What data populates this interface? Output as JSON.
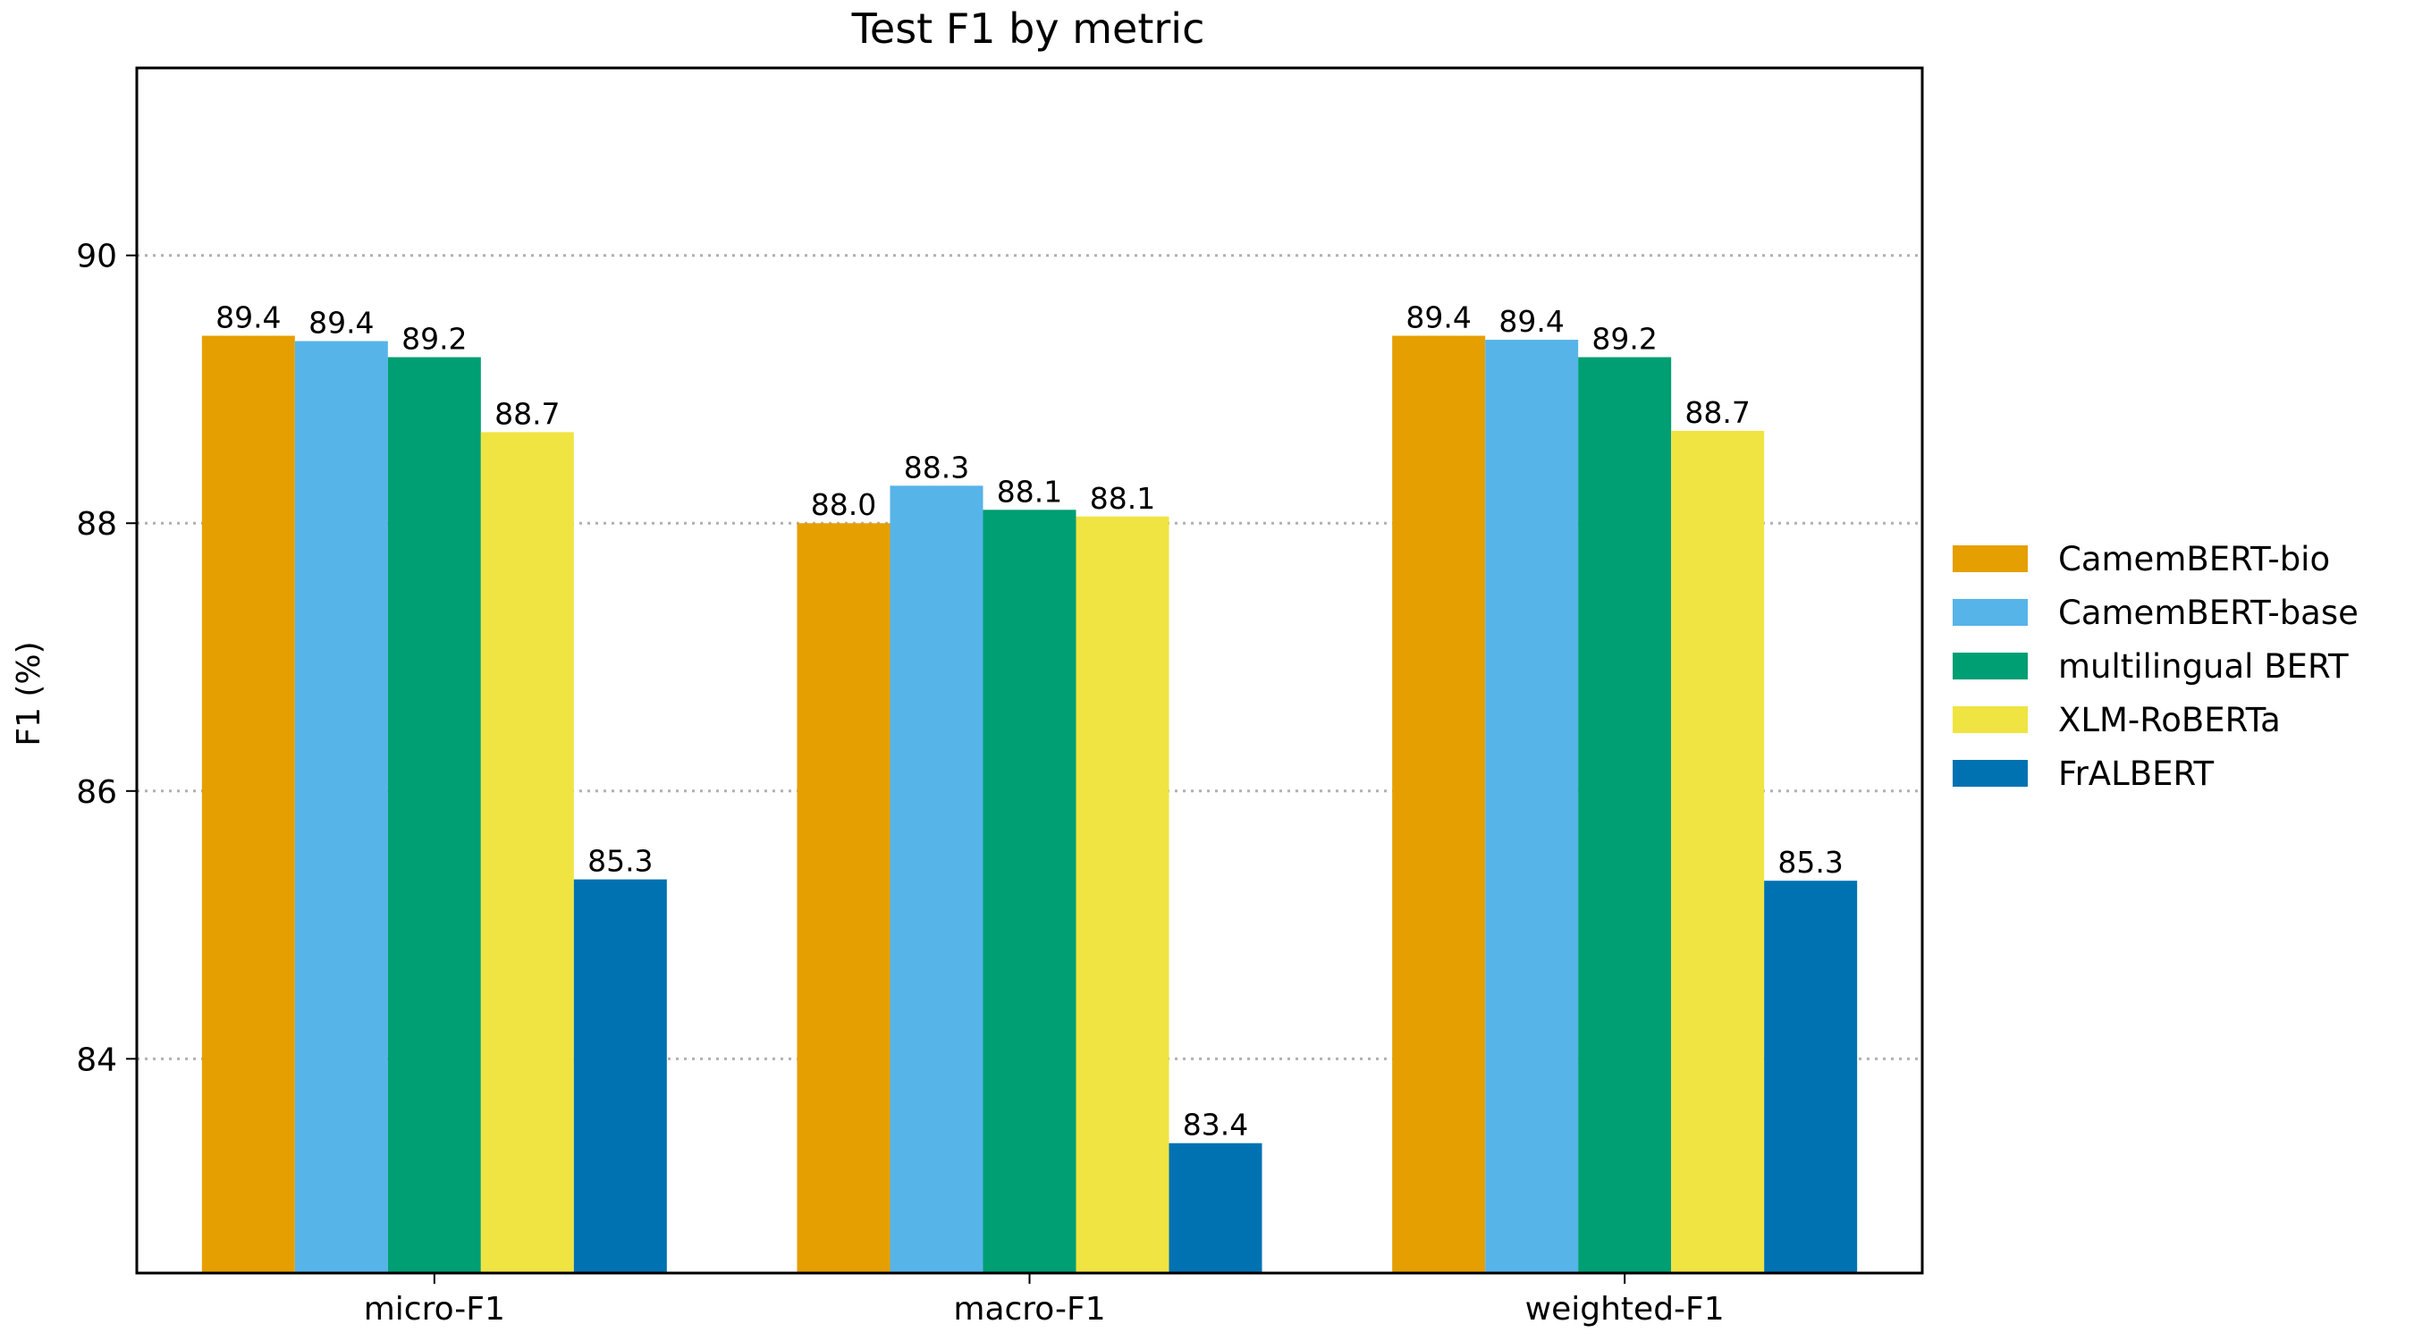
{
  "chart_data": {
    "type": "bar",
    "title": "Test F1 by metric",
    "xlabel": "",
    "ylabel": "F1 (%)",
    "categories": [
      "micro-F1",
      "macro-F1",
      "weighted-F1"
    ],
    "ylim": [
      82.4,
      91.4
    ],
    "yticks": [
      84,
      86,
      88,
      90
    ],
    "grid": "y-dotted",
    "legend": "right",
    "series": [
      {
        "name": "CamemBERT-bio",
        "color": "#E69F00",
        "values": [
          89.4,
          88.0,
          89.4
        ],
        "labels": [
          "89.4",
          "88.0",
          "89.4"
        ]
      },
      {
        "name": "CamemBERT-base",
        "color": "#56B4E9",
        "values": [
          89.36,
          88.28,
          89.37
        ],
        "labels": [
          "89.4",
          "88.3",
          "89.4"
        ]
      },
      {
        "name": "multilingual BERT",
        "color": "#009E73",
        "values": [
          89.24,
          88.1,
          89.24
        ],
        "labels": [
          "89.2",
          "88.1",
          "89.2"
        ]
      },
      {
        "name": "XLM-RoBERTa",
        "color": "#F0E442",
        "values": [
          88.68,
          88.05,
          88.69
        ],
        "labels": [
          "88.7",
          "88.1",
          "88.7"
        ]
      },
      {
        "name": "FrALBERT",
        "color": "#0072B2",
        "values": [
          85.34,
          83.37,
          85.33
        ],
        "labels": [
          "85.3",
          "83.4",
          "85.3"
        ]
      }
    ]
  }
}
